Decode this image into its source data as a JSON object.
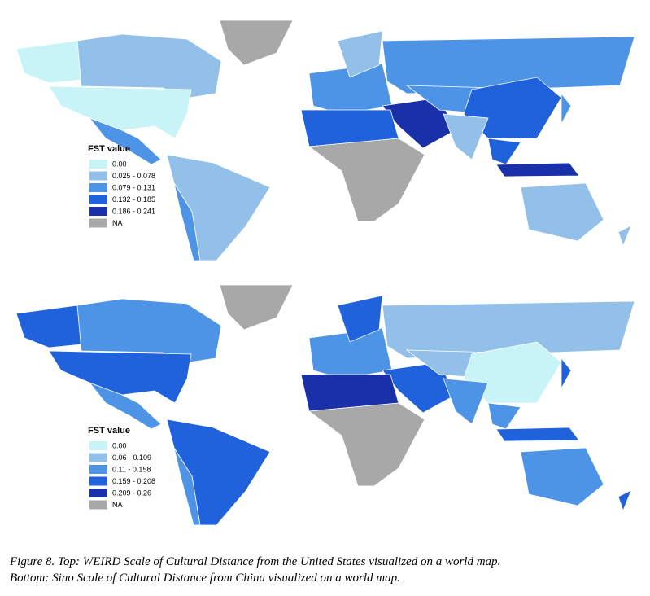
{
  "maps": [
    {
      "legend": {
        "title": "FST value",
        "items": [
          {
            "label": "0.00",
            "color": "#c8f4f7"
          },
          {
            "label": "0.025 - 0.078",
            "color": "#93c0e8"
          },
          {
            "label": "0.079 - 0.131",
            "color": "#4d94e6"
          },
          {
            "label": "0.132 - 0.185",
            "color": "#1f62dc"
          },
          {
            "label": "0.186 - 0.241",
            "color": "#1a30a8"
          },
          {
            "label": "NA",
            "color": "#a8a8a8"
          }
        ]
      }
    },
    {
      "legend": {
        "title": "FST value",
        "items": [
          {
            "label": "0.00",
            "color": "#c8f4f7"
          },
          {
            "label": "0.06 - 0.109",
            "color": "#93c0e8"
          },
          {
            "label": "0.11 - 0.158",
            "color": "#4d94e6"
          },
          {
            "label": "0.159 - 0.208",
            "color": "#1f62dc"
          },
          {
            "label": "0.209 - 0.26",
            "color": "#1a30a8"
          },
          {
            "label": "NA",
            "color": "#a8a8a8"
          }
        ]
      }
    }
  ],
  "caption": [
    "Figure 8. Top: WEIRD Scale of Cultural Distance from the United States visualized on a world map.",
    "Bottom: Sino Scale of Cultural Distance from China visualized on a world map."
  ]
}
